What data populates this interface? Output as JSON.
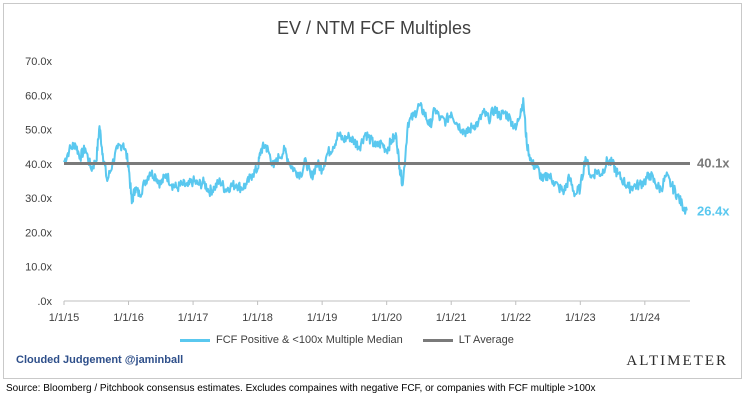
{
  "chart_data": {
    "type": "line",
    "title": "EV / NTM FCF Multiples",
    "xlabel": "",
    "ylabel": "",
    "ylim": [
      0,
      70
    ],
    "y_ticks": [
      "70.0x",
      "60.0x",
      "50.0x",
      "40.0x",
      "30.0x",
      "20.0x",
      "10.0x",
      ".0x"
    ],
    "y_tick_values": [
      70,
      60,
      50,
      40,
      30,
      20,
      10,
      0
    ],
    "x_ticks": [
      "1/1/15",
      "1/1/16",
      "1/1/17",
      "1/1/18",
      "1/1/19",
      "1/1/20",
      "1/1/21",
      "1/1/22",
      "1/1/23",
      "1/1/24"
    ],
    "x_tick_years": [
      2015,
      2016,
      2017,
      2018,
      2019,
      2020,
      2021,
      2022,
      2023,
      2024
    ],
    "xlim": [
      2015.0,
      2024.7
    ],
    "grid": false,
    "legend_position": "bottom",
    "series": [
      {
        "name": "FCF Positive & <100x Multiple Median",
        "color": "#5ac8ef",
        "end_label": "26.4x",
        "x": [
          2015.0,
          2015.08,
          2015.17,
          2015.25,
          2015.33,
          2015.42,
          2015.5,
          2015.55,
          2015.6,
          2015.67,
          2015.75,
          2015.83,
          2015.92,
          2016.0,
          2016.05,
          2016.1,
          2016.17,
          2016.25,
          2016.33,
          2016.42,
          2016.5,
          2016.58,
          2016.67,
          2016.75,
          2016.83,
          2016.92,
          2017.0,
          2017.08,
          2017.17,
          2017.25,
          2017.33,
          2017.42,
          2017.5,
          2017.58,
          2017.67,
          2017.75,
          2017.83,
          2017.92,
          2018.0,
          2018.05,
          2018.12,
          2018.17,
          2018.25,
          2018.33,
          2018.42,
          2018.5,
          2018.58,
          2018.67,
          2018.75,
          2018.83,
          2018.92,
          2019.0,
          2019.08,
          2019.17,
          2019.25,
          2019.33,
          2019.42,
          2019.5,
          2019.58,
          2019.67,
          2019.75,
          2019.83,
          2019.92,
          2020.0,
          2020.08,
          2020.15,
          2020.2,
          2020.25,
          2020.33,
          2020.42,
          2020.5,
          2020.58,
          2020.67,
          2020.75,
          2020.83,
          2020.92,
          2021.0,
          2021.08,
          2021.17,
          2021.25,
          2021.33,
          2021.42,
          2021.5,
          2021.58,
          2021.67,
          2021.75,
          2021.83,
          2021.92,
          2022.0,
          2022.08,
          2022.12,
          2022.17,
          2022.25,
          2022.33,
          2022.42,
          2022.5,
          2022.58,
          2022.67,
          2022.75,
          2022.83,
          2022.92,
          2023.0,
          2023.08,
          2023.17,
          2023.25,
          2023.33,
          2023.42,
          2023.5,
          2023.58,
          2023.67,
          2023.75,
          2023.83,
          2023.92,
          2024.0,
          2024.08,
          2024.17,
          2024.25,
          2024.33,
          2024.42,
          2024.5,
          2024.58,
          2024.65
        ],
        "values": [
          40.5,
          44.0,
          46.0,
          42.0,
          44.5,
          38.5,
          41.0,
          51.0,
          43.0,
          35.0,
          40.0,
          44.5,
          46.0,
          40.0,
          28.5,
          33.0,
          31.0,
          34.5,
          37.5,
          36.5,
          34.0,
          37.0,
          34.0,
          33.0,
          34.0,
          33.5,
          35.0,
          34.0,
          34.5,
          32.0,
          33.0,
          35.0,
          32.5,
          33.5,
          34.0,
          33.0,
          34.0,
          37.0,
          38.5,
          44.0,
          45.5,
          43.5,
          39.0,
          42.0,
          44.0,
          40.0,
          38.0,
          37.0,
          41.0,
          36.0,
          40.0,
          38.5,
          43.0,
          45.0,
          48.5,
          47.0,
          48.0,
          46.5,
          45.0,
          49.0,
          47.0,
          45.0,
          46.0,
          44.0,
          47.0,
          48.0,
          39.0,
          34.0,
          52.0,
          54.0,
          57.0,
          55.0,
          51.0,
          56.0,
          53.0,
          52.5,
          55.0,
          52.0,
          50.0,
          49.0,
          51.0,
          52.0,
          55.0,
          53.0,
          56.0,
          54.0,
          55.0,
          53.0,
          50.0,
          56.0,
          58.0,
          46.0,
          40.0,
          39.0,
          35.0,
          37.0,
          35.0,
          33.0,
          32.0,
          36.0,
          31.0,
          33.0,
          42.0,
          36.0,
          38.0,
          37.0,
          41.0,
          40.0,
          37.0,
          35.0,
          33.0,
          33.5,
          34.0,
          35.0,
          37.0,
          34.0,
          32.5,
          36.5,
          33.5,
          31.0,
          28.0,
          26.4
        ]
      },
      {
        "name": "LT Average",
        "color": "#7a7a7a",
        "end_label": "40.1x",
        "value": 40.1
      }
    ]
  },
  "footer": {
    "watermark": "Clouded Judgement @jaminball",
    "logo": "Altimeter",
    "source": "Source: Bloomberg / Pitchbook consensus estimates. Excludes compaines with negative FCF, or companies with FCF multiple >100x"
  }
}
